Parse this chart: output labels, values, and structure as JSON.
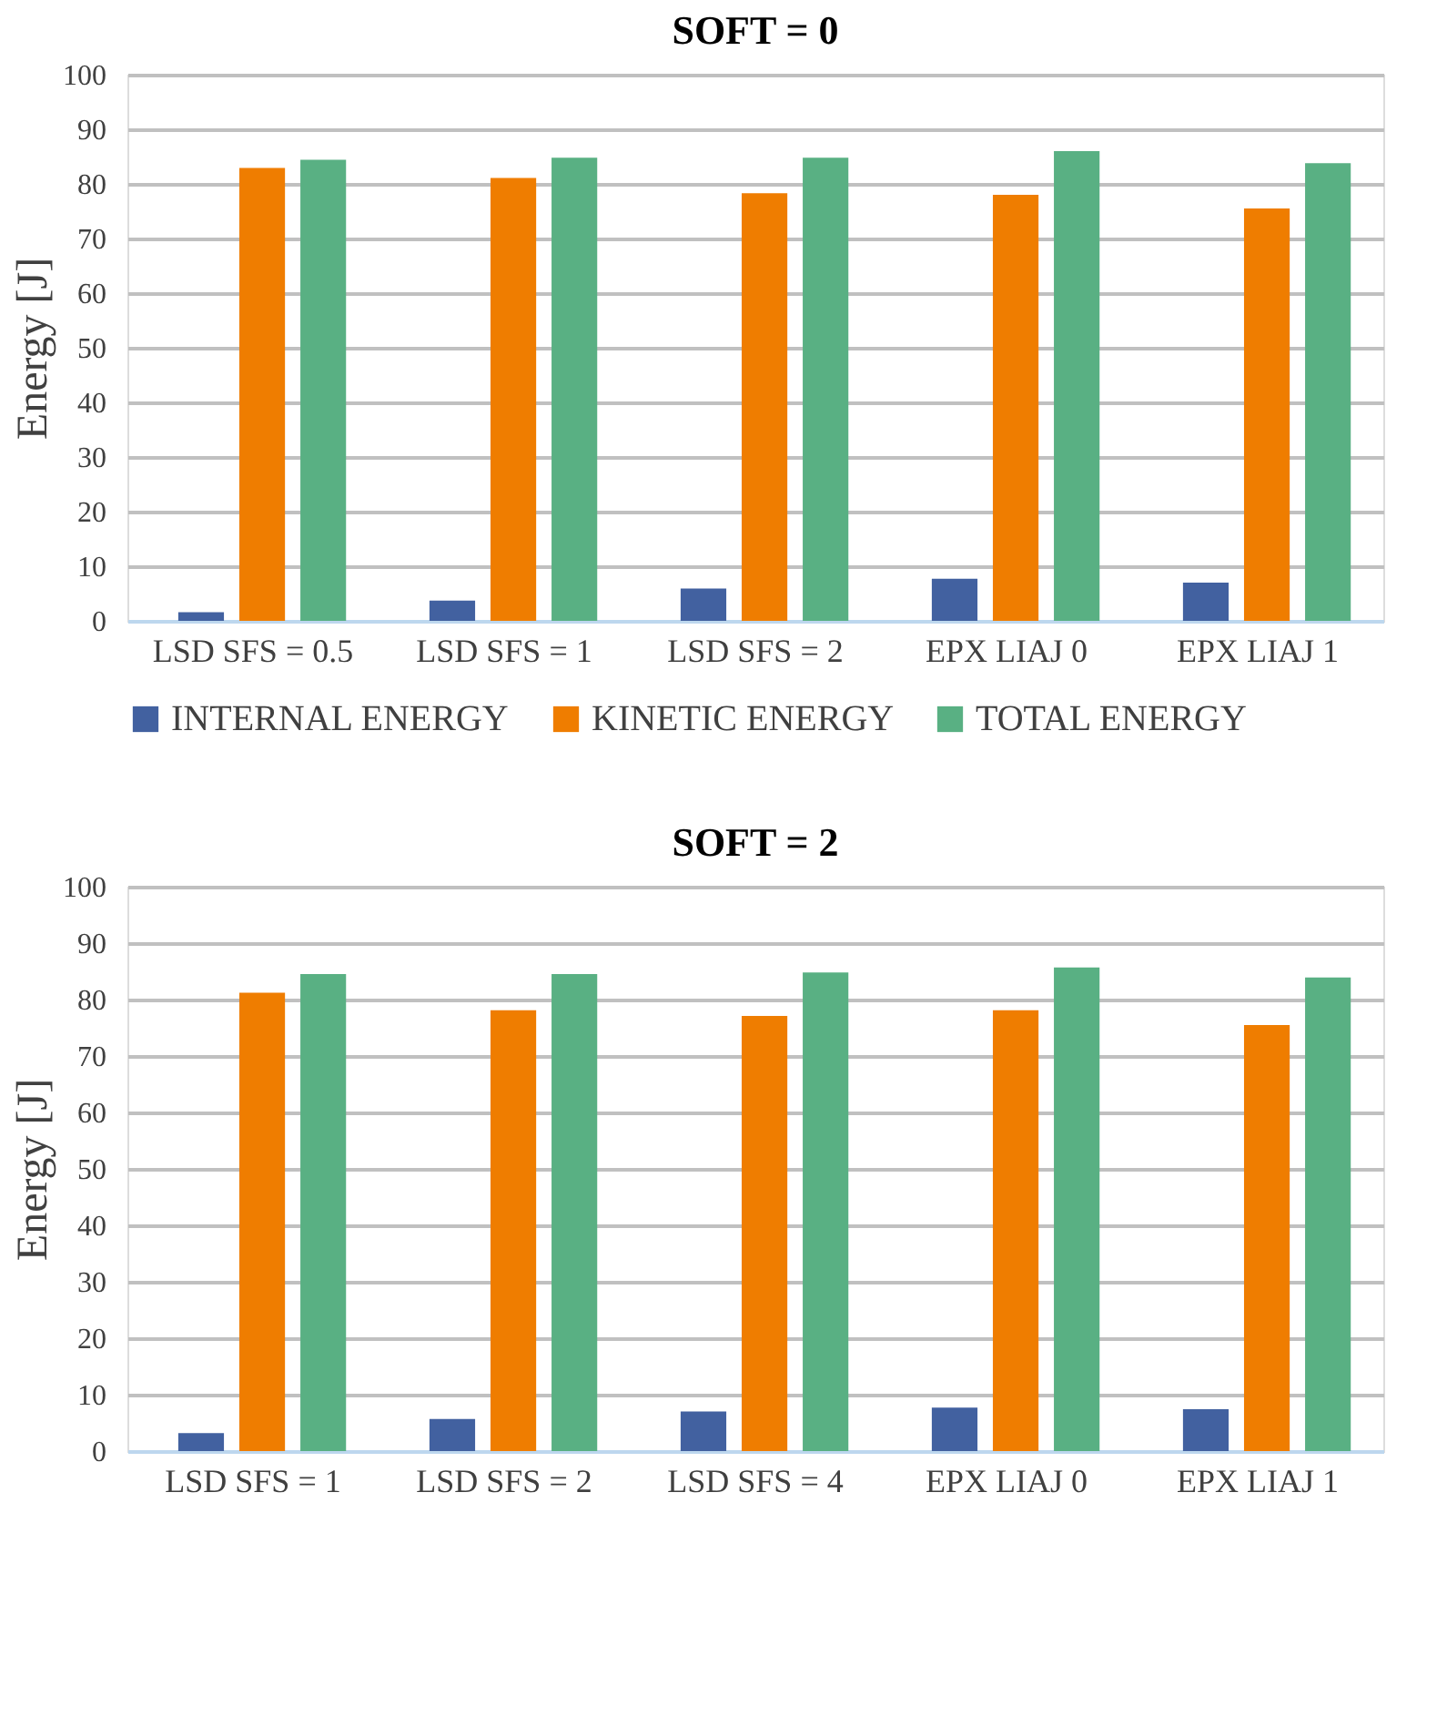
{
  "chart_data": [
    {
      "type": "bar",
      "title": "SOFT = 0",
      "ylabel": "Energy [J]",
      "categories": [
        "LSD SFS = 0.5",
        "LSD SFS = 1",
        "LSD SFS = 2",
        "EPX LIAJ 0",
        "EPX LIAJ 1"
      ],
      "ylim": [
        0,
        100
      ],
      "yticks": [
        0,
        10,
        20,
        30,
        40,
        50,
        60,
        70,
        80,
        90,
        100
      ],
      "grid": "y",
      "legend": "bottom",
      "series": [
        {
          "name": "INTERNAL ENERGY",
          "color": "#4261a0",
          "values": [
            1.6,
            3.7,
            5.9,
            7.7,
            7.0
          ]
        },
        {
          "name": "KINETIC ENERGY",
          "color": "#ef7d00",
          "values": [
            82.9,
            81.1,
            78.3,
            78.0,
            75.5
          ]
        },
        {
          "name": "TOTAL ENERGY",
          "color": "#59b083",
          "values": [
            84.4,
            84.8,
            84.8,
            86.0,
            83.8
          ]
        }
      ]
    },
    {
      "type": "bar",
      "title": "SOFT = 2",
      "ylabel": "Energy [J]",
      "categories": [
        "LSD SFS = 1",
        "LSD SFS = 2",
        "LSD SFS = 4",
        "EPX LIAJ 0",
        "EPX LIAJ 1"
      ],
      "ylim": [
        0,
        100
      ],
      "yticks": [
        0,
        10,
        20,
        30,
        40,
        50,
        60,
        70,
        80,
        90,
        100
      ],
      "grid": "y",
      "series": [
        {
          "color": "#4261a0",
          "values": [
            3.2,
            5.7,
            7.0,
            7.7,
            7.4
          ]
        },
        {
          "color": "#ef7d00",
          "values": [
            81.2,
            78.1,
            77.1,
            78.1,
            75.5
          ]
        },
        {
          "color": "#59b083",
          "values": [
            84.5,
            84.5,
            84.8,
            85.7,
            83.9
          ]
        }
      ]
    }
  ]
}
